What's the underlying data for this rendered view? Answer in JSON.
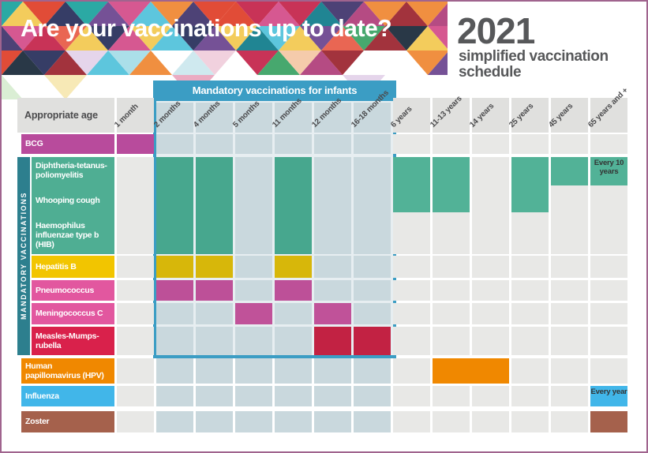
{
  "header": {
    "title": "Are your vaccinations up to date?",
    "year": "2021",
    "subtitle_line1": "simplified vaccination",
    "subtitle_line2": "schedule",
    "mosaic_palette": [
      "#9e2b35",
      "#e0452f",
      "#ef8a38",
      "#e8604c",
      "#c62b50",
      "#d4518c",
      "#6f4a92",
      "#463a70",
      "#2e3560",
      "#22a6a0",
      "#17808f",
      "#56c4dc",
      "#3fa468",
      "#f2ca55",
      "#b2447e",
      "#203040"
    ],
    "mosaic_light_palette": [
      "#f0cfdd",
      "#f7e8b3",
      "#cde8ee",
      "#e4d3ea",
      "#f5c9a8",
      "#d9edd2",
      "#eaa8c0",
      "#a8dee8"
    ]
  },
  "banner": {
    "label": "Mandatory vaccinations for infants",
    "bg": "#3b9dc4"
  },
  "sidebar": {
    "label": "MANDATORY VACCINATIONS",
    "bg": "#2d7f8e"
  },
  "corner_label": "Appropriate age",
  "colors": {
    "zone_cell": "#c9d8dd",
    "zone_gap": "#e7eef1",
    "out_cell": "#e8e8e6",
    "header_cell_out": "#e0e0de",
    "border": "#a0648e",
    "note_text": "#333333"
  },
  "chart_data": {
    "type": "table",
    "title": "2021 simplified vaccination schedule",
    "columns": [
      {
        "id": "1m",
        "label": "1 month",
        "infant_zone": false
      },
      {
        "id": "2m",
        "label": "2 months",
        "infant_zone": true
      },
      {
        "id": "4m",
        "label": "4 months",
        "infant_zone": true
      },
      {
        "id": "5m",
        "label": "5 months",
        "infant_zone": true
      },
      {
        "id": "11m",
        "label": "11 months",
        "infant_zone": true
      },
      {
        "id": "12m",
        "label": "12 months",
        "infant_zone": true
      },
      {
        "id": "16-18m",
        "label": "16-18 months",
        "infant_zone": true
      },
      {
        "id": "6y",
        "label": "6 years",
        "infant_zone": false
      },
      {
        "id": "11-13y",
        "label": "11-13 years",
        "infant_zone": false
      },
      {
        "id": "14y",
        "label": "14 years",
        "infant_zone": false
      },
      {
        "id": "25y",
        "label": "25 years",
        "infant_zone": false
      },
      {
        "id": "45y",
        "label": "45 years",
        "infant_zone": false
      },
      {
        "id": "65y",
        "label": "65 years and +",
        "infant_zone": false
      }
    ],
    "rows": [
      {
        "id": "bcg",
        "label": "BCG",
        "color": "#b84b9c",
        "mandatory": false,
        "doses": [
          {
            "col": "1m"
          }
        ]
      },
      {
        "id": "dtp",
        "labels": [
          "Diphtheria-tetanus-\npoliomyelitis",
          "Whooping cough",
          "Haemophilus\ninfluenzae type b\n(HIB)"
        ],
        "color": "#4fae93",
        "cell_color": "#47a78e",
        "cell_color_out": "#52b297",
        "mandatory": true,
        "doses": [
          {
            "col": "2m"
          },
          {
            "col": "4m"
          },
          {
            "col": "11m"
          },
          {
            "col": "6y",
            "extent": "dtp_wc"
          },
          {
            "col": "11-13y",
            "extent": "dtp_wc"
          },
          {
            "col": "25y",
            "extent": "dtp_wc"
          },
          {
            "col": "45y",
            "extent": "dtp"
          },
          {
            "col": "65y",
            "extent": "dtp",
            "note": "Every 10 years"
          }
        ]
      },
      {
        "id": "hepb",
        "label": "Hepatitis B",
        "color": "#f2c500",
        "cell_color": "#d7b70a",
        "mandatory": true,
        "doses": [
          {
            "col": "2m"
          },
          {
            "col": "4m"
          },
          {
            "col": "11m"
          }
        ]
      },
      {
        "id": "pneumo",
        "label": "Pneumococcus",
        "color": "#e2579f",
        "cell_color": "#bd5098",
        "mandatory": true,
        "doses": [
          {
            "col": "2m"
          },
          {
            "col": "4m"
          },
          {
            "col": "11m"
          }
        ]
      },
      {
        "id": "mening",
        "label": "Meningococcus C",
        "color": "#e2579f",
        "cell_color": "#c05299",
        "mandatory": true,
        "doses": [
          {
            "col": "5m"
          },
          {
            "col": "12m"
          }
        ]
      },
      {
        "id": "mmr",
        "label": "Measles-Mumps-\nrubella",
        "color": "#d9214b",
        "cell_color": "#c22243",
        "mandatory": true,
        "doses": [
          {
            "col": "12m"
          },
          {
            "col": "16-18m"
          }
        ]
      },
      {
        "id": "hpv",
        "label": "Human\npapillomavirus (HPV)",
        "color": "#f08800",
        "mandatory": false,
        "doses": [
          {
            "col": "11-13y",
            "span": 2
          }
        ]
      },
      {
        "id": "flu",
        "label": "Influenza",
        "color": "#41b6e9",
        "mandatory": false,
        "doses": [
          {
            "col": "65y",
            "note": "Every year"
          }
        ]
      },
      {
        "id": "zoster",
        "label": "Zoster",
        "color": "#a5614c",
        "mandatory": false,
        "doses": [
          {
            "col": "65y"
          }
        ]
      }
    ]
  }
}
